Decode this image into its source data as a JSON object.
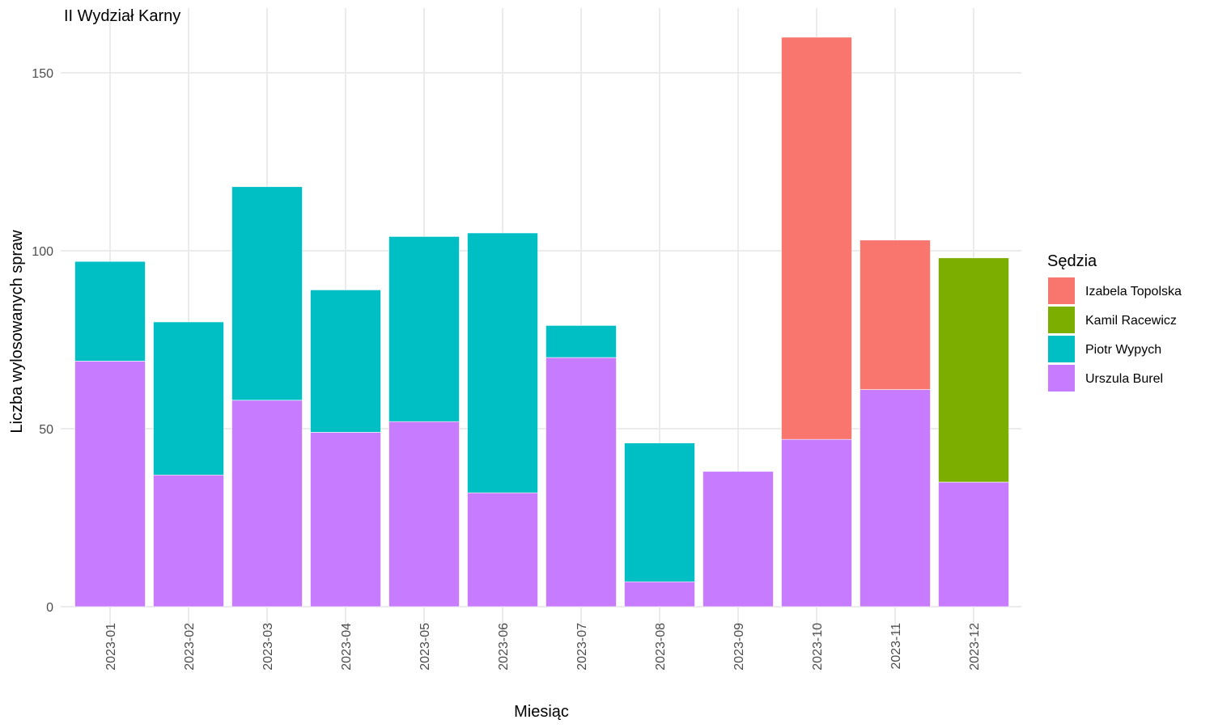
{
  "chart_data": {
    "type": "bar",
    "stacked": true,
    "title": "II Wydział Karny",
    "xlabel": "Miesiąc",
    "ylabel": "Liczba wylosowanych spraw",
    "ylim": [
      0,
      160
    ],
    "yticks": [
      0,
      50,
      100,
      150
    ],
    "grid": true,
    "legend_title": "Sędzia",
    "legend_position": "right",
    "categories": [
      "2023-01",
      "2023-02",
      "2023-03",
      "2023-04",
      "2023-05",
      "2023-06",
      "2023-07",
      "2023-08",
      "2023-09",
      "2023-10",
      "2023-11",
      "2023-12"
    ],
    "series": [
      {
        "name": "Urszula Burel",
        "color": "#C77CFF",
        "values": [
          69,
          37,
          58,
          49,
          52,
          32,
          70,
          7,
          38,
          47,
          61,
          35
        ]
      },
      {
        "name": "Piotr Wypych",
        "color": "#00BFC4",
        "values": [
          28,
          43,
          60,
          40,
          52,
          73,
          9,
          39,
          0,
          0,
          0,
          0
        ]
      },
      {
        "name": "Kamil Racewicz",
        "color": "#7CAE00",
        "values": [
          0,
          0,
          0,
          0,
          0,
          0,
          0,
          0,
          0,
          0,
          0,
          63
        ]
      },
      {
        "name": "Izabela Topolska",
        "color": "#F8766D",
        "values": [
          0,
          0,
          0,
          0,
          0,
          0,
          0,
          0,
          0,
          113,
          42,
          0
        ]
      }
    ],
    "legend_order": [
      "Izabela Topolska",
      "Kamil Racewicz",
      "Piotr Wypych",
      "Urszula Burel"
    ]
  }
}
